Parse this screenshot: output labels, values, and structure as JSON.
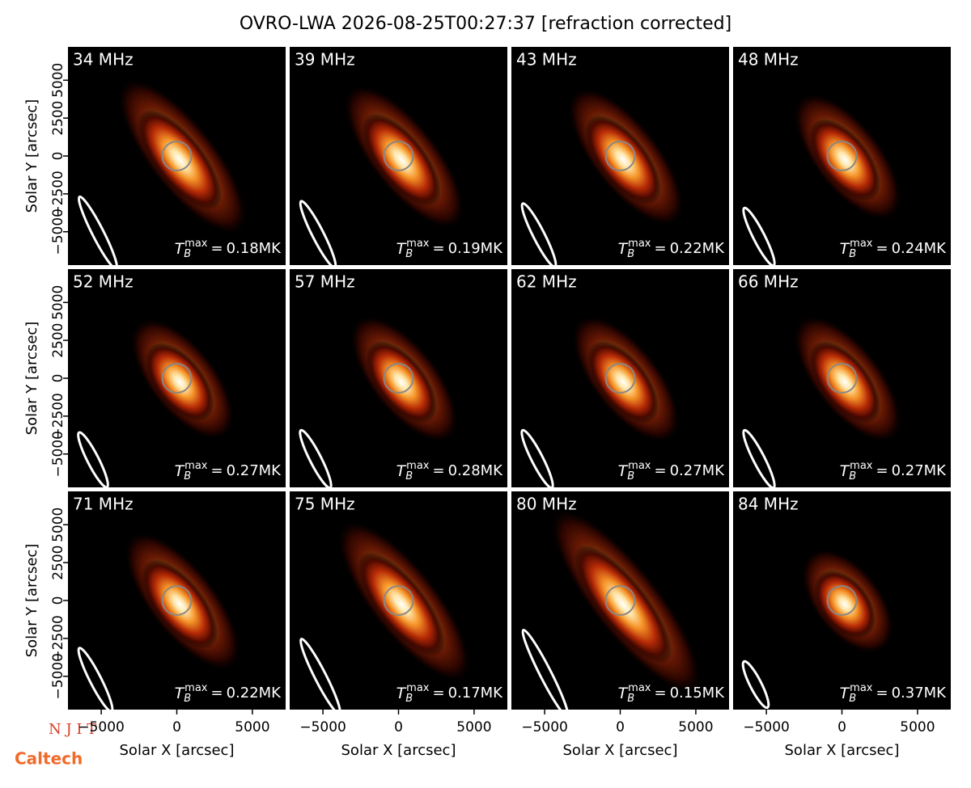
{
  "chart_data": {
    "type": "image_grid",
    "title": "OVRO-LWA 2026-08-25T00:27:37 [refraction corrected]",
    "xlabel": "Solar X [arcsec]",
    "ylabel": "Solar Y [arcsec]",
    "xlim": [
      -7200,
      7200
    ],
    "ylim": [
      -7200,
      7200
    ],
    "xticks": [
      {
        "value": -5000,
        "label": "−5000"
      },
      0,
      5000
    ],
    "yticks": [
      {
        "value": -5000,
        "label": "−5000"
      },
      {
        "value": -2500,
        "label": "−2500"
      },
      0,
      2500,
      5000
    ],
    "tb_symbol": "T",
    "tb_sub": "B",
    "tb_sup": "max",
    "tb_equals": "=",
    "panels": [
      {
        "title": "34 MHz",
        "tb_max": 0.18,
        "tb_max_label": "0.18MK"
      },
      {
        "title": "39 MHz",
        "tb_max": 0.19,
        "tb_max_label": "0.19MK"
      },
      {
        "title": "43 MHz",
        "tb_max": 0.22,
        "tb_max_label": "0.22MK"
      },
      {
        "title": "48 MHz",
        "tb_max": 0.24,
        "tb_max_label": "0.24MK"
      },
      {
        "title": "52 MHz",
        "tb_max": 0.27,
        "tb_max_label": "0.27MK"
      },
      {
        "title": "57 MHz",
        "tb_max": 0.28,
        "tb_max_label": "0.28MK"
      },
      {
        "title": "62 MHz",
        "tb_max": 0.27,
        "tb_max_label": "0.27MK"
      },
      {
        "title": "66 MHz",
        "tb_max": 0.27,
        "tb_max_label": "0.27MK"
      },
      {
        "title": "71 MHz",
        "tb_max": 0.22,
        "tb_max_label": "0.22MK"
      },
      {
        "title": "75 MHz",
        "tb_max": 0.17,
        "tb_max_label": "0.17MK"
      },
      {
        "title": "80 MHz",
        "tb_max": 0.15,
        "tb_max_label": "0.15MK"
      },
      {
        "title": "84 MHz",
        "tb_max": 0.37,
        "tb_max_label": "0.37MK"
      }
    ]
  },
  "logos": [
    "N J I T",
    "Caltech"
  ]
}
